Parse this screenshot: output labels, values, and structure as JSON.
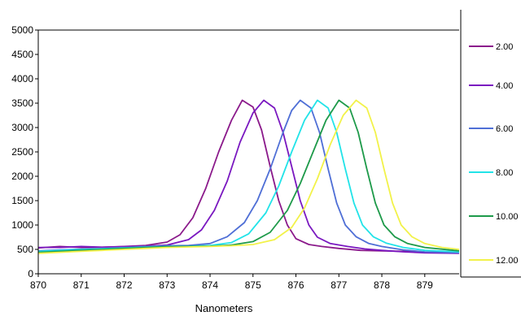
{
  "chart_data": {
    "type": "line",
    "title": "",
    "xlabel": "Nanometers",
    "ylabel": "",
    "xlim": [
      870,
      879.8
    ],
    "ylim": [
      0,
      5000
    ],
    "x_ticks": [
      "870",
      "871",
      "872",
      "873",
      "874",
      "875",
      "876",
      "877",
      "878",
      "879"
    ],
    "y_ticks": [
      "0",
      "500",
      "1000",
      "1500",
      "2000",
      "2500",
      "3000",
      "3500",
      "4000",
      "4500",
      "5000"
    ],
    "grid": false,
    "legend_position": "right",
    "series": [
      {
        "name": "2.00",
        "color": "#8b1a8b",
        "points": [
          [
            870,
            530
          ],
          [
            870.5,
            560
          ],
          [
            871,
            540
          ],
          [
            871.5,
            545
          ],
          [
            872,
            560
          ],
          [
            872.5,
            580
          ],
          [
            873,
            650
          ],
          [
            873.3,
            800
          ],
          [
            873.6,
            1150
          ],
          [
            873.9,
            1750
          ],
          [
            874.2,
            2500
          ],
          [
            874.5,
            3150
          ],
          [
            874.75,
            3560
          ],
          [
            875,
            3420
          ],
          [
            875.2,
            2950
          ],
          [
            875.4,
            2200
          ],
          [
            875.6,
            1500
          ],
          [
            875.8,
            1000
          ],
          [
            876,
            720
          ],
          [
            876.3,
            600
          ],
          [
            876.6,
            560
          ],
          [
            877,
            520
          ],
          [
            877.5,
            480
          ],
          [
            878,
            470
          ],
          [
            878.5,
            460
          ],
          [
            879,
            440
          ],
          [
            879.8,
            430
          ]
        ]
      },
      {
        "name": "4.00",
        "color": "#7a18c0",
        "points": [
          [
            870,
            540
          ],
          [
            870.5,
            540
          ],
          [
            871,
            560
          ],
          [
            871.5,
            545
          ],
          [
            872,
            555
          ],
          [
            872.5,
            565
          ],
          [
            873,
            590
          ],
          [
            873.5,
            700
          ],
          [
            873.8,
            900
          ],
          [
            874.1,
            1300
          ],
          [
            874.4,
            1900
          ],
          [
            874.7,
            2700
          ],
          [
            875,
            3300
          ],
          [
            875.25,
            3560
          ],
          [
            875.5,
            3400
          ],
          [
            875.7,
            2900
          ],
          [
            875.9,
            2200
          ],
          [
            876.1,
            1500
          ],
          [
            876.3,
            1000
          ],
          [
            876.5,
            750
          ],
          [
            876.8,
            620
          ],
          [
            877.2,
            560
          ],
          [
            877.6,
            510
          ],
          [
            878,
            480
          ],
          [
            878.5,
            450
          ],
          [
            879,
            430
          ],
          [
            879.8,
            420
          ]
        ]
      },
      {
        "name": "6.00",
        "color": "#4f6fd6",
        "points": [
          [
            870,
            470
          ],
          [
            870.5,
            490
          ],
          [
            871,
            505
          ],
          [
            871.5,
            515
          ],
          [
            872,
            535
          ],
          [
            872.5,
            560
          ],
          [
            873,
            575
          ],
          [
            873.5,
            580
          ],
          [
            874,
            620
          ],
          [
            874.4,
            760
          ],
          [
            874.8,
            1050
          ],
          [
            875.1,
            1500
          ],
          [
            875.4,
            2150
          ],
          [
            875.7,
            2900
          ],
          [
            875.9,
            3350
          ],
          [
            876.1,
            3560
          ],
          [
            876.35,
            3400
          ],
          [
            876.55,
            2900
          ],
          [
            876.75,
            2150
          ],
          [
            876.95,
            1450
          ],
          [
            877.15,
            1000
          ],
          [
            877.4,
            760
          ],
          [
            877.7,
            620
          ],
          [
            878,
            560
          ],
          [
            878.5,
            490
          ],
          [
            879,
            450
          ],
          [
            879.8,
            430
          ]
        ]
      },
      {
        "name": "8.00",
        "color": "#22e3e8",
        "points": [
          [
            870,
            460
          ],
          [
            870.5,
            480
          ],
          [
            871,
            500
          ],
          [
            871.5,
            515
          ],
          [
            872,
            530
          ],
          [
            872.5,
            545
          ],
          [
            873,
            560
          ],
          [
            873.5,
            565
          ],
          [
            874,
            580
          ],
          [
            874.5,
            640
          ],
          [
            874.9,
            820
          ],
          [
            875.3,
            1250
          ],
          [
            875.6,
            1800
          ],
          [
            875.9,
            2500
          ],
          [
            876.2,
            3150
          ],
          [
            876.5,
            3560
          ],
          [
            876.75,
            3400
          ],
          [
            876.95,
            2900
          ],
          [
            877.15,
            2150
          ],
          [
            877.35,
            1450
          ],
          [
            877.55,
            1000
          ],
          [
            877.8,
            760
          ],
          [
            878.1,
            630
          ],
          [
            878.5,
            540
          ],
          [
            879,
            480
          ],
          [
            879.8,
            450
          ]
        ]
      },
      {
        "name": "10.00",
        "color": "#1e9a4a",
        "points": [
          [
            870,
            440
          ],
          [
            870.5,
            460
          ],
          [
            871,
            480
          ],
          [
            871.5,
            500
          ],
          [
            872,
            520
          ],
          [
            872.5,
            540
          ],
          [
            873,
            555
          ],
          [
            873.5,
            560
          ],
          [
            874,
            565
          ],
          [
            874.5,
            590
          ],
          [
            875,
            660
          ],
          [
            875.4,
            850
          ],
          [
            875.8,
            1300
          ],
          [
            876.1,
            1850
          ],
          [
            876.4,
            2500
          ],
          [
            876.7,
            3150
          ],
          [
            877,
            3560
          ],
          [
            877.25,
            3400
          ],
          [
            877.45,
            2900
          ],
          [
            877.65,
            2150
          ],
          [
            877.85,
            1450
          ],
          [
            878.05,
            1000
          ],
          [
            878.3,
            760
          ],
          [
            878.6,
            620
          ],
          [
            879,
            540
          ],
          [
            879.8,
            470
          ]
        ]
      },
      {
        "name": "12.00",
        "color": "#f2f24a",
        "points": [
          [
            870,
            420
          ],
          [
            870.5,
            440
          ],
          [
            871,
            460
          ],
          [
            871.5,
            480
          ],
          [
            872,
            500
          ],
          [
            872.5,
            520
          ],
          [
            873,
            540
          ],
          [
            873.5,
            550
          ],
          [
            874,
            560
          ],
          [
            874.5,
            575
          ],
          [
            875,
            600
          ],
          [
            875.5,
            700
          ],
          [
            875.9,
            950
          ],
          [
            876.2,
            1350
          ],
          [
            876.5,
            1950
          ],
          [
            876.8,
            2650
          ],
          [
            877.1,
            3250
          ],
          [
            877.4,
            3560
          ],
          [
            877.65,
            3400
          ],
          [
            877.85,
            2900
          ],
          [
            878.05,
            2150
          ],
          [
            878.25,
            1450
          ],
          [
            878.45,
            1000
          ],
          [
            878.7,
            760
          ],
          [
            879,
            620
          ],
          [
            879.4,
            540
          ],
          [
            879.8,
            500
          ]
        ]
      }
    ]
  }
}
